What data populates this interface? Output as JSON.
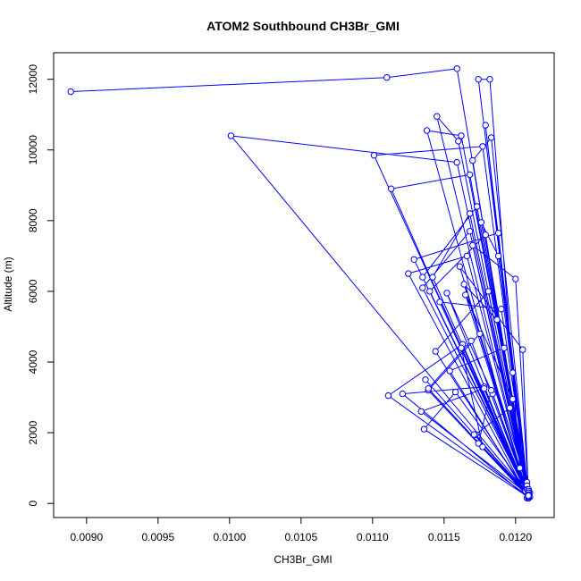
{
  "chart_data": {
    "type": "scatter",
    "title": "ATOM2 Southbound CH3Br_GMI",
    "xlabel": "CH3Br_GMI",
    "ylabel": "Altitude (m)",
    "xlim": [
      0.00877,
      0.01227
    ],
    "ylim": [
      -400,
      12750
    ],
    "xticks": [
      "0.0090",
      "0.0095",
      "0.0100",
      "0.0105",
      "0.0110",
      "0.0115",
      "0.0120"
    ],
    "yticks": [
      "0",
      "2000",
      "4000",
      "6000",
      "8000",
      "10000",
      "12000"
    ],
    "grid": false,
    "legend": "none",
    "colors": {
      "series": "#0000ff",
      "frame": "#000000"
    },
    "series": [
      {
        "x": [
          0.00889,
          0.0111,
          0.01159,
          0.01209,
          0.01209,
          0.01174,
          0.01182,
          0.01203,
          0.01208,
          0.01138,
          0.01162,
          0.01208,
          0.01209,
          0.01183,
          0.0117,
          0.01208,
          0.01001,
          0.01159,
          0.01209,
          0.0121,
          0.01101,
          0.01177,
          0.01209,
          0.01209,
          0.01113,
          0.01168,
          0.01209,
          0.01209,
          0.01145,
          0.0116,
          0.01208,
          0.01209,
          0.01129,
          0.01188,
          0.01207,
          0.01209,
          0.01135,
          0.01173,
          0.01209,
          0.01209,
          0.0114,
          0.01179,
          0.01209,
          0.01209,
          0.01125,
          0.01166,
          0.01208,
          0.01209,
          0.01142,
          0.01168,
          0.01209,
          0.01209,
          0.01139,
          0.01175,
          0.0121,
          0.01209,
          0.01111,
          0.01163,
          0.01209,
          0.01209,
          0.01121,
          0.01178,
          0.01209,
          0.01209,
          0.01136,
          0.01158,
          0.01209,
          0.01209,
          0.01134,
          0.01178,
          0.01209,
          0.01209,
          0.01147,
          0.0119,
          0.01209,
          0.01209,
          0.01152,
          0.01184,
          0.01209,
          0.01209,
          0.01162,
          0.01177,
          0.01209,
          0.01209,
          0.01172,
          0.01196,
          0.01209,
          0.01209,
          0.01144,
          0.01181,
          0.01209,
          0.01209,
          0.01164,
          0.01187,
          0.01209,
          0.01209,
          0.01137,
          0.01171,
          0.01209,
          0.01209,
          0.01165,
          0.01198,
          0.01209,
          0.01209,
          0.01174,
          0.01183,
          0.01209,
          0.01209,
          0.01154,
          0.01192,
          0.01209,
          0.01209,
          0.01139,
          0.01169,
          0.01209,
          0.01209,
          0.0117,
          0.012,
          0.01209,
          0.01209,
          0.01176,
          0.01188,
          0.01209,
          0.01209,
          0.01179,
          0.01198,
          0.01209,
          0.01209,
          0.01135,
          0.01168,
          0.01209,
          0.01209,
          0.01161,
          0.01205,
          0.01209
        ],
        "y": [
          11650,
          12050,
          12300,
          200,
          250,
          12000,
          12000,
          1000,
          150,
          10550,
          10400,
          600,
          200,
          10350,
          9700,
          300,
          10400,
          9650,
          250,
          180,
          9850,
          10100,
          200,
          150,
          8900,
          9300,
          250,
          200,
          10950,
          10250,
          500,
          220,
          6900,
          7650,
          350,
          200,
          6400,
          8400,
          300,
          250,
          6000,
          7600,
          200,
          150,
          6500,
          7000,
          400,
          200,
          6400,
          8200,
          250,
          180,
          3200,
          4800,
          300,
          200,
          3050,
          4500,
          250,
          150,
          3100,
          3300,
          200,
          180,
          2100,
          3150,
          300,
          250,
          2600,
          3250,
          250,
          200,
          5700,
          5500,
          400,
          200,
          5950,
          3100,
          300,
          220,
          4400,
          1600,
          250,
          180,
          1950,
          2700,
          300,
          200,
          4300,
          6000,
          250,
          200,
          6200,
          5200,
          300,
          220,
          3500,
          1950,
          250,
          200,
          5900,
          2950,
          350,
          200,
          1700,
          3200,
          250,
          150,
          3750,
          4400,
          300,
          200,
          3250,
          4600,
          250,
          180,
          7300,
          6350,
          300,
          200,
          7950,
          7000,
          250,
          200,
          10700,
          3700,
          300,
          220,
          6100,
          7700,
          250,
          200,
          6700,
          4350,
          220
        ]
      }
    ]
  }
}
